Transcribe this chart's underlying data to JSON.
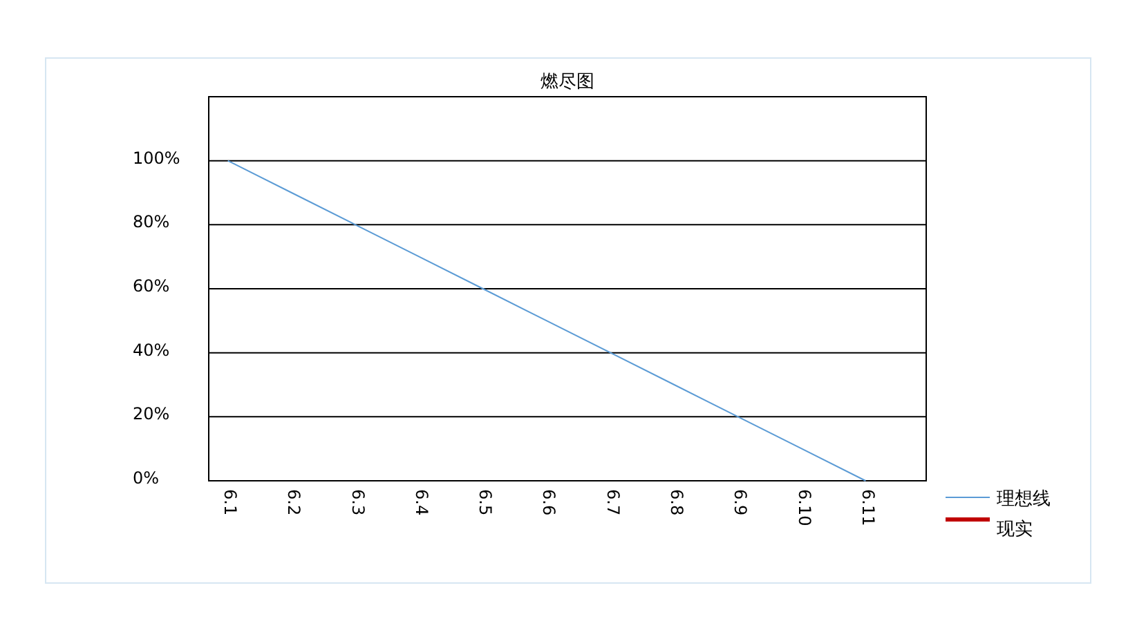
{
  "chart_data": {
    "type": "line",
    "title": "燃尽图",
    "categories": [
      "6.1",
      "6.2",
      "6.3",
      "6.4",
      "6.5",
      "6.6",
      "6.7",
      "6.8",
      "6.9",
      "6.10",
      "6.11"
    ],
    "series": [
      {
        "name": "理想线",
        "color": "#5b9bd5",
        "values": [
          100,
          90,
          80,
          70,
          60,
          50,
          40,
          30,
          20,
          10,
          0
        ]
      },
      {
        "name": "现实",
        "color": "#c00000",
        "values": [
          null,
          null,
          null,
          null,
          null,
          null,
          null,
          null,
          null,
          null,
          null
        ]
      }
    ],
    "ylim": [
      0,
      120
    ],
    "yticks": [
      {
        "value": 0,
        "label": "0%"
      },
      {
        "value": 20,
        "label": "20%"
      },
      {
        "value": 40,
        "label": "40%"
      },
      {
        "value": 60,
        "label": "60%"
      },
      {
        "value": 80,
        "label": "80%"
      },
      {
        "value": 100,
        "label": "100%"
      }
    ],
    "grid": "y",
    "legend": "right",
    "marker": "none"
  }
}
